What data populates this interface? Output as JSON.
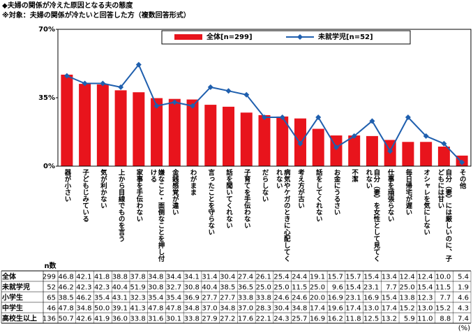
{
  "chart_data": {
    "type": "bar",
    "title": "◆夫婦の関係が冷えた原因となる夫の態度",
    "subtitle": "※対象：夫婦の関係が冷たいと回答した方（複数回答形式）",
    "categories": [
      "器が小さい",
      "子どもじみている",
      "気が利かない",
      "上から目線でものを言う",
      "家事を手伝わない",
      "嫌なこと・面倒なことを押し付ける",
      "金銭感覚が違い",
      "わがまま",
      "言ったことを守らない",
      "話を聞いてくれない",
      "子育てを手伝わない",
      "だらしない",
      "病気やケガのときに心配してくれない",
      "考え方が古い",
      "話をしてくれない",
      "お金にうるさい",
      "不潔",
      "自分（妻）を女性として見てくれない",
      "仕事を頑張らない",
      "毎日帰宅が遅い",
      "オシャレを気にしない",
      "自分（妻）には厳しいのに、子どもには甘い",
      "その他"
    ],
    "series": [
      {
        "name": "全体[n=299]",
        "type": "bar",
        "color": "#e8141c",
        "values": [
          46.8,
          42.1,
          41.8,
          38.8,
          37.8,
          34.8,
          34.4,
          34.1,
          31.4,
          30.4,
          27.4,
          26.1,
          25.4,
          24.4,
          19.1,
          15.7,
          15.7,
          15.4,
          13.4,
          12.4,
          12.4,
          10.0,
          5.4
        ]
      },
      {
        "name": "未就学児[n=52]",
        "type": "line",
        "color": "#1f5fae",
        "values": [
          46.2,
          42.3,
          42.3,
          40.4,
          51.9,
          30.8,
          32.7,
          30.8,
          40.4,
          38.5,
          36.5,
          25.0,
          25.0,
          11.5,
          25.0,
          9.6,
          15.4,
          23.1,
          7.7,
          25.0,
          15.4,
          11.5,
          1.9
        ]
      }
    ],
    "ylim": [
      0,
      70
    ],
    "yticks": [
      {
        "value": 0,
        "label": "0%"
      },
      {
        "value": 35,
        "label": "35%"
      },
      {
        "value": 70,
        "label": "70%"
      }
    ],
    "grid": false,
    "unit_note": "(%)",
    "table": {
      "n_header": "n数",
      "rows": [
        {
          "label": "全体",
          "n": 299,
          "values": [
            "46.8",
            "42.1",
            "41.8",
            "38.8",
            "37.8",
            "34.8",
            "34.4",
            "34.1",
            "31.4",
            "30.4",
            "27.4",
            "26.1",
            "25.4",
            "24.4",
            "19.1",
            "15.7",
            "15.7",
            "15.4",
            "13.4",
            "12.4",
            "12.4",
            "10.0",
            "5.4"
          ]
        },
        {
          "label": "未就学児",
          "n": 52,
          "values": [
            "46.2",
            "42.3",
            "42.3",
            "40.4",
            "51.9",
            "30.8",
            "32.7",
            "30.8",
            "40.4",
            "38.5",
            "36.5",
            "25.0",
            "25.0",
            "11.5",
            "25.0",
            "9.6",
            "15.4",
            "23.1",
            "7.7",
            "25.0",
            "15.4",
            "11.5",
            "1.9"
          ]
        },
        {
          "label": "小学生",
          "n": 65,
          "values": [
            "38.5",
            "46.2",
            "35.4",
            "43.1",
            "32.3",
            "35.4",
            "35.4",
            "36.9",
            "27.7",
            "27.7",
            "33.8",
            "33.8",
            "24.6",
            "24.6",
            "20.0",
            "16.9",
            "23.1",
            "16.9",
            "15.4",
            "13.8",
            "12.3",
            "7.7",
            "4.6"
          ]
        },
        {
          "label": "中学生",
          "n": 46,
          "values": [
            "47.8",
            "34.8",
            "50.0",
            "39.1",
            "41.3",
            "47.8",
            "47.8",
            "34.8",
            "37.0",
            "34.8",
            "37.0",
            "28.3",
            "30.4",
            "34.8",
            "17.4",
            "19.6",
            "17.4",
            "13.0",
            "17.4",
            "15.2",
            "13.0",
            "15.2",
            "4.3"
          ]
        },
        {
          "label": "高校生以上",
          "n": 136,
          "values": [
            "50.7",
            "42.6",
            "41.9",
            "36.0",
            "33.8",
            "31.6",
            "30.1",
            "33.8",
            "27.9",
            "27.2",
            "17.6",
            "22.1",
            "24.3",
            "25.7",
            "16.9",
            "16.2",
            "11.8",
            "12.5",
            "13.2",
            "5.9",
            "11.0",
            "8.8",
            "7.4"
          ]
        }
      ]
    }
  }
}
